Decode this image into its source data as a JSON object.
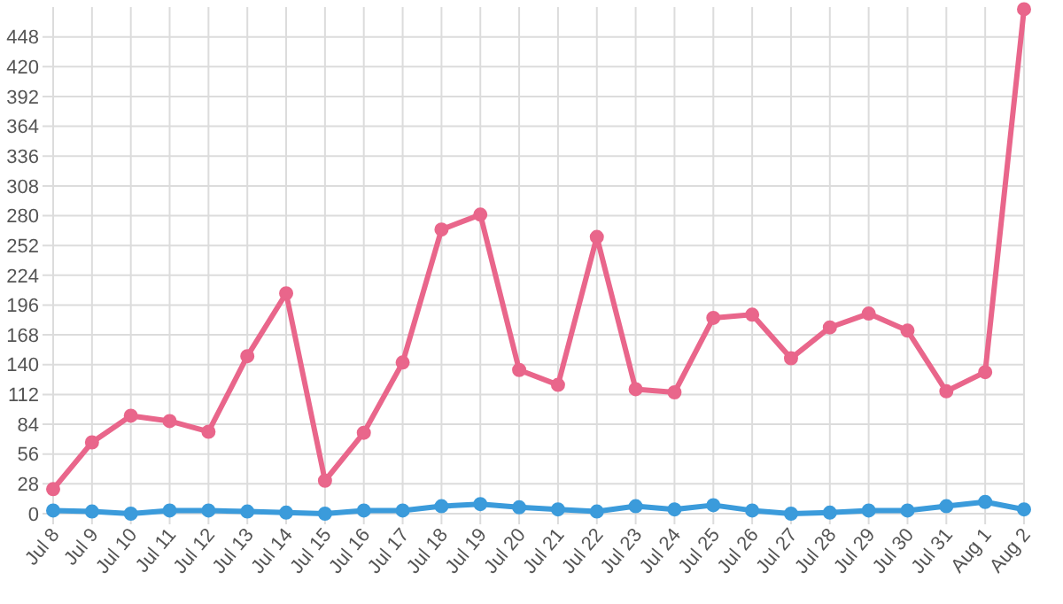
{
  "chart_data": {
    "type": "line",
    "categories": [
      "Jul 8",
      "Jul 9",
      "Jul 10",
      "Jul 11",
      "Jul 12",
      "Jul 13",
      "Jul 14",
      "Jul 15",
      "Jul 16",
      "Jul 17",
      "Jul 18",
      "Jul 19",
      "Jul 20",
      "Jul 21",
      "Jul 22",
      "Jul 23",
      "Jul 24",
      "Jul 25",
      "Jul 26",
      "Jul 27",
      "Jul 28",
      "Jul 29",
      "Jul 30",
      "Jul 31",
      "Aug 1",
      "Aug 2"
    ],
    "series": [
      {
        "color": "#e9668b",
        "values": [
          23,
          67,
          92,
          87,
          77,
          148,
          207,
          31,
          76,
          142,
          267,
          281,
          135,
          121,
          260,
          117,
          114,
          184,
          187,
          146,
          175,
          188,
          172,
          115,
          133,
          474
        ]
      },
      {
        "color": "#3b9bdb",
        "values": [
          3,
          2,
          0,
          3,
          3,
          2,
          1,
          0,
          3,
          3,
          7,
          9,
          6,
          4,
          2,
          7,
          4,
          8,
          3,
          0,
          1,
          3,
          3,
          7,
          11,
          4
        ]
      }
    ],
    "ylim": [
      0,
      476
    ],
    "yticks": [
      0,
      28,
      56,
      84,
      112,
      140,
      168,
      196,
      224,
      252,
      280,
      308,
      336,
      364,
      392,
      420,
      448
    ],
    "grid": true,
    "marker": "circle",
    "line_style": "solid"
  }
}
